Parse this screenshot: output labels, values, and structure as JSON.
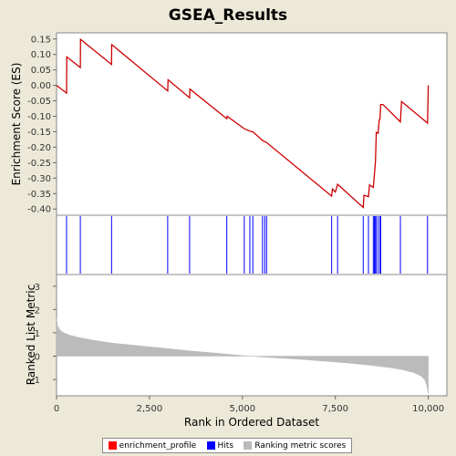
{
  "chart_data": [
    {
      "type": "line",
      "title": "GSEA_Results",
      "ylabel": "Enrichment Score (ES)",
      "ylim": [
        -0.42,
        0.17
      ],
      "xlim": [
        0,
        10500
      ],
      "ytick_labels": [
        "0.15",
        "0.10",
        "0.05",
        "0.00",
        "-0.05",
        "-0.10",
        "-0.15",
        "-0.20",
        "-0.25",
        "-0.30",
        "-0.35",
        "-0.40"
      ],
      "color": "#CC0000",
      "series": [
        {
          "name": "enrichment_profile",
          "x": [
            0,
            270,
            275,
            640,
            645,
            1480,
            1485,
            2990,
            3000,
            3580,
            3590,
            4580,
            4590,
            5050,
            5200,
            5280,
            5540,
            5600,
            5650,
            7400,
            7420,
            7500,
            7560,
            8250,
            8270,
            8390,
            8420,
            8520,
            8550,
            8580,
            8600,
            8650,
            8680,
            8700,
            8720,
            8780,
            9250,
            9280,
            9980,
            10000
          ],
          "y": [
            0.0,
            -0.025,
            0.092,
            0.058,
            0.149,
            0.068,
            0.132,
            -0.018,
            0.018,
            -0.04,
            -0.012,
            -0.108,
            -0.1,
            -0.14,
            -0.148,
            -0.15,
            -0.178,
            -0.182,
            -0.185,
            -0.358,
            -0.335,
            -0.345,
            -0.32,
            -0.395,
            -0.355,
            -0.36,
            -0.322,
            -0.33,
            -0.29,
            -0.245,
            -0.152,
            -0.155,
            -0.112,
            -0.11,
            -0.062,
            -0.062,
            -0.118,
            -0.052,
            -0.122,
            0.0
          ]
        }
      ]
    },
    {
      "type": "scatter",
      "title": "",
      "series": [
        {
          "name": "Hits",
          "x": [
            270,
            640,
            1480,
            2990,
            3580,
            4580,
            5050,
            5200,
            5280,
            5540,
            5600,
            5650,
            7400,
            7560,
            8250,
            8390,
            8520,
            8550,
            8580,
            8600,
            8650,
            8700,
            8720,
            9250,
            9980
          ]
        }
      ]
    },
    {
      "type": "area",
      "ylabel": "Ranked List Metric",
      "xlabel": "Rank in Ordered Dataset",
      "ylim": [
        -1.7,
        3.5
      ],
      "xlim": [
        0,
        10500
      ],
      "ytick_labels": [
        "3",
        "2",
        "1",
        "0",
        "-1"
      ],
      "xtick_labels": [
        "0",
        "2,500",
        "5,000",
        "7,500",
        "10,000"
      ],
      "color": "#BBBBBB",
      "series": [
        {
          "name": "Ranking metric scores",
          "x": [
            0,
            30,
            100,
            200,
            350,
            600,
            1000,
            1500,
            2000,
            2500,
            3000,
            3500,
            4000,
            4500,
            5000,
            5500,
            6000,
            6500,
            7000,
            7500,
            8000,
            8500,
            9000,
            9300,
            9600,
            9800,
            9900,
            9950,
            10000
          ],
          "y": [
            1.6,
            1.3,
            1.1,
            1.0,
            0.9,
            0.8,
            0.68,
            0.56,
            0.48,
            0.4,
            0.32,
            0.24,
            0.17,
            0.1,
            0.03,
            -0.03,
            -0.08,
            -0.13,
            -0.19,
            -0.25,
            -0.32,
            -0.4,
            -0.5,
            -0.58,
            -0.7,
            -0.85,
            -1.0,
            -1.2,
            -1.6
          ]
        }
      ]
    }
  ],
  "legend": {
    "items": [
      {
        "label": "enrichment_profile",
        "color": "#FF0000"
      },
      {
        "label": "Hits",
        "color": "#0000FF"
      },
      {
        "label": "Ranking metric scores",
        "color": "#BBBBBB"
      }
    ]
  }
}
